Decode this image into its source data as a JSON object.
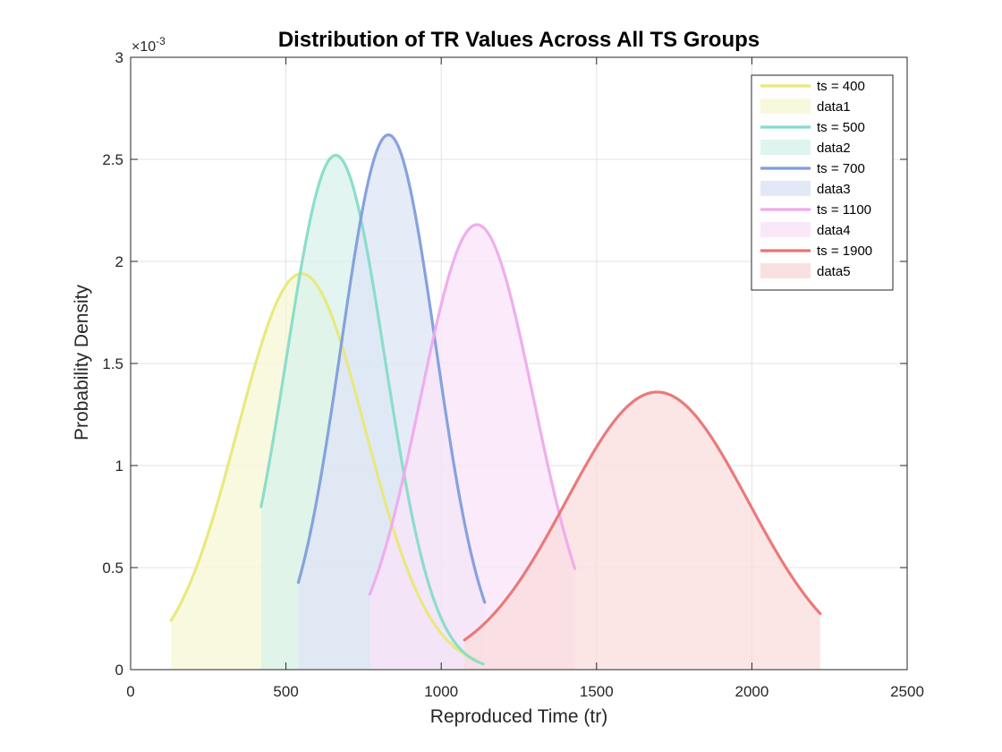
{
  "chart_data": {
    "type": "area",
    "title": "Distribution of TR Values Across All TS Groups",
    "xlabel": "Reproduced Time (tr)",
    "ylabel": "Probability Density",
    "xlim": [
      0,
      2500
    ],
    "ylim": [
      0,
      0.003
    ],
    "x_ticks": [
      0,
      500,
      1000,
      1500,
      2000,
      2500
    ],
    "x_tick_labels": [
      "0",
      "500",
      "1000",
      "1500",
      "2000",
      "2500"
    ],
    "y_ticks": [
      0,
      0.0005,
      0.001,
      0.0015,
      0.002,
      0.0025,
      0.003
    ],
    "y_tick_labels": [
      "0",
      "0.5",
      "1",
      "1.5",
      "2",
      "2.5",
      "3"
    ],
    "y_exponent_label": "×10",
    "y_exponent_power": "-3",
    "grid": true,
    "legend_position": "top-right",
    "series": [
      {
        "name": "ts = 400",
        "fill_name": "data1",
        "mean": 550,
        "peak": 0.00194,
        "xmin": 130,
        "xmax": 1110,
        "color": "#e8e87a",
        "fill_color": "#f7f7d6"
      },
      {
        "name": "ts = 500",
        "fill_name": "data2",
        "mean": 660,
        "peak": 0.00252,
        "xmin": 420,
        "xmax": 1135,
        "color": "#86dcc8",
        "fill_color": "#d8f2ec"
      },
      {
        "name": "ts = 700",
        "fill_name": "data3",
        "mean": 830,
        "peak": 0.00262,
        "xmin": 540,
        "xmax": 1140,
        "color": "#7f9edb",
        "fill_color": "#dde4f5"
      },
      {
        "name": "ts = 1100",
        "fill_name": "data4",
        "mean": 1115,
        "peak": 0.00218,
        "xmin": 770,
        "xmax": 1430,
        "color": "#efaaec",
        "fill_color": "#f9e4f8"
      },
      {
        "name": "ts = 1900",
        "fill_name": "data5",
        "mean": 1695,
        "peak": 0.00136,
        "xmin": 1075,
        "xmax": 2220,
        "color": "#e87474",
        "fill_color": "#f9dcdc"
      }
    ]
  }
}
